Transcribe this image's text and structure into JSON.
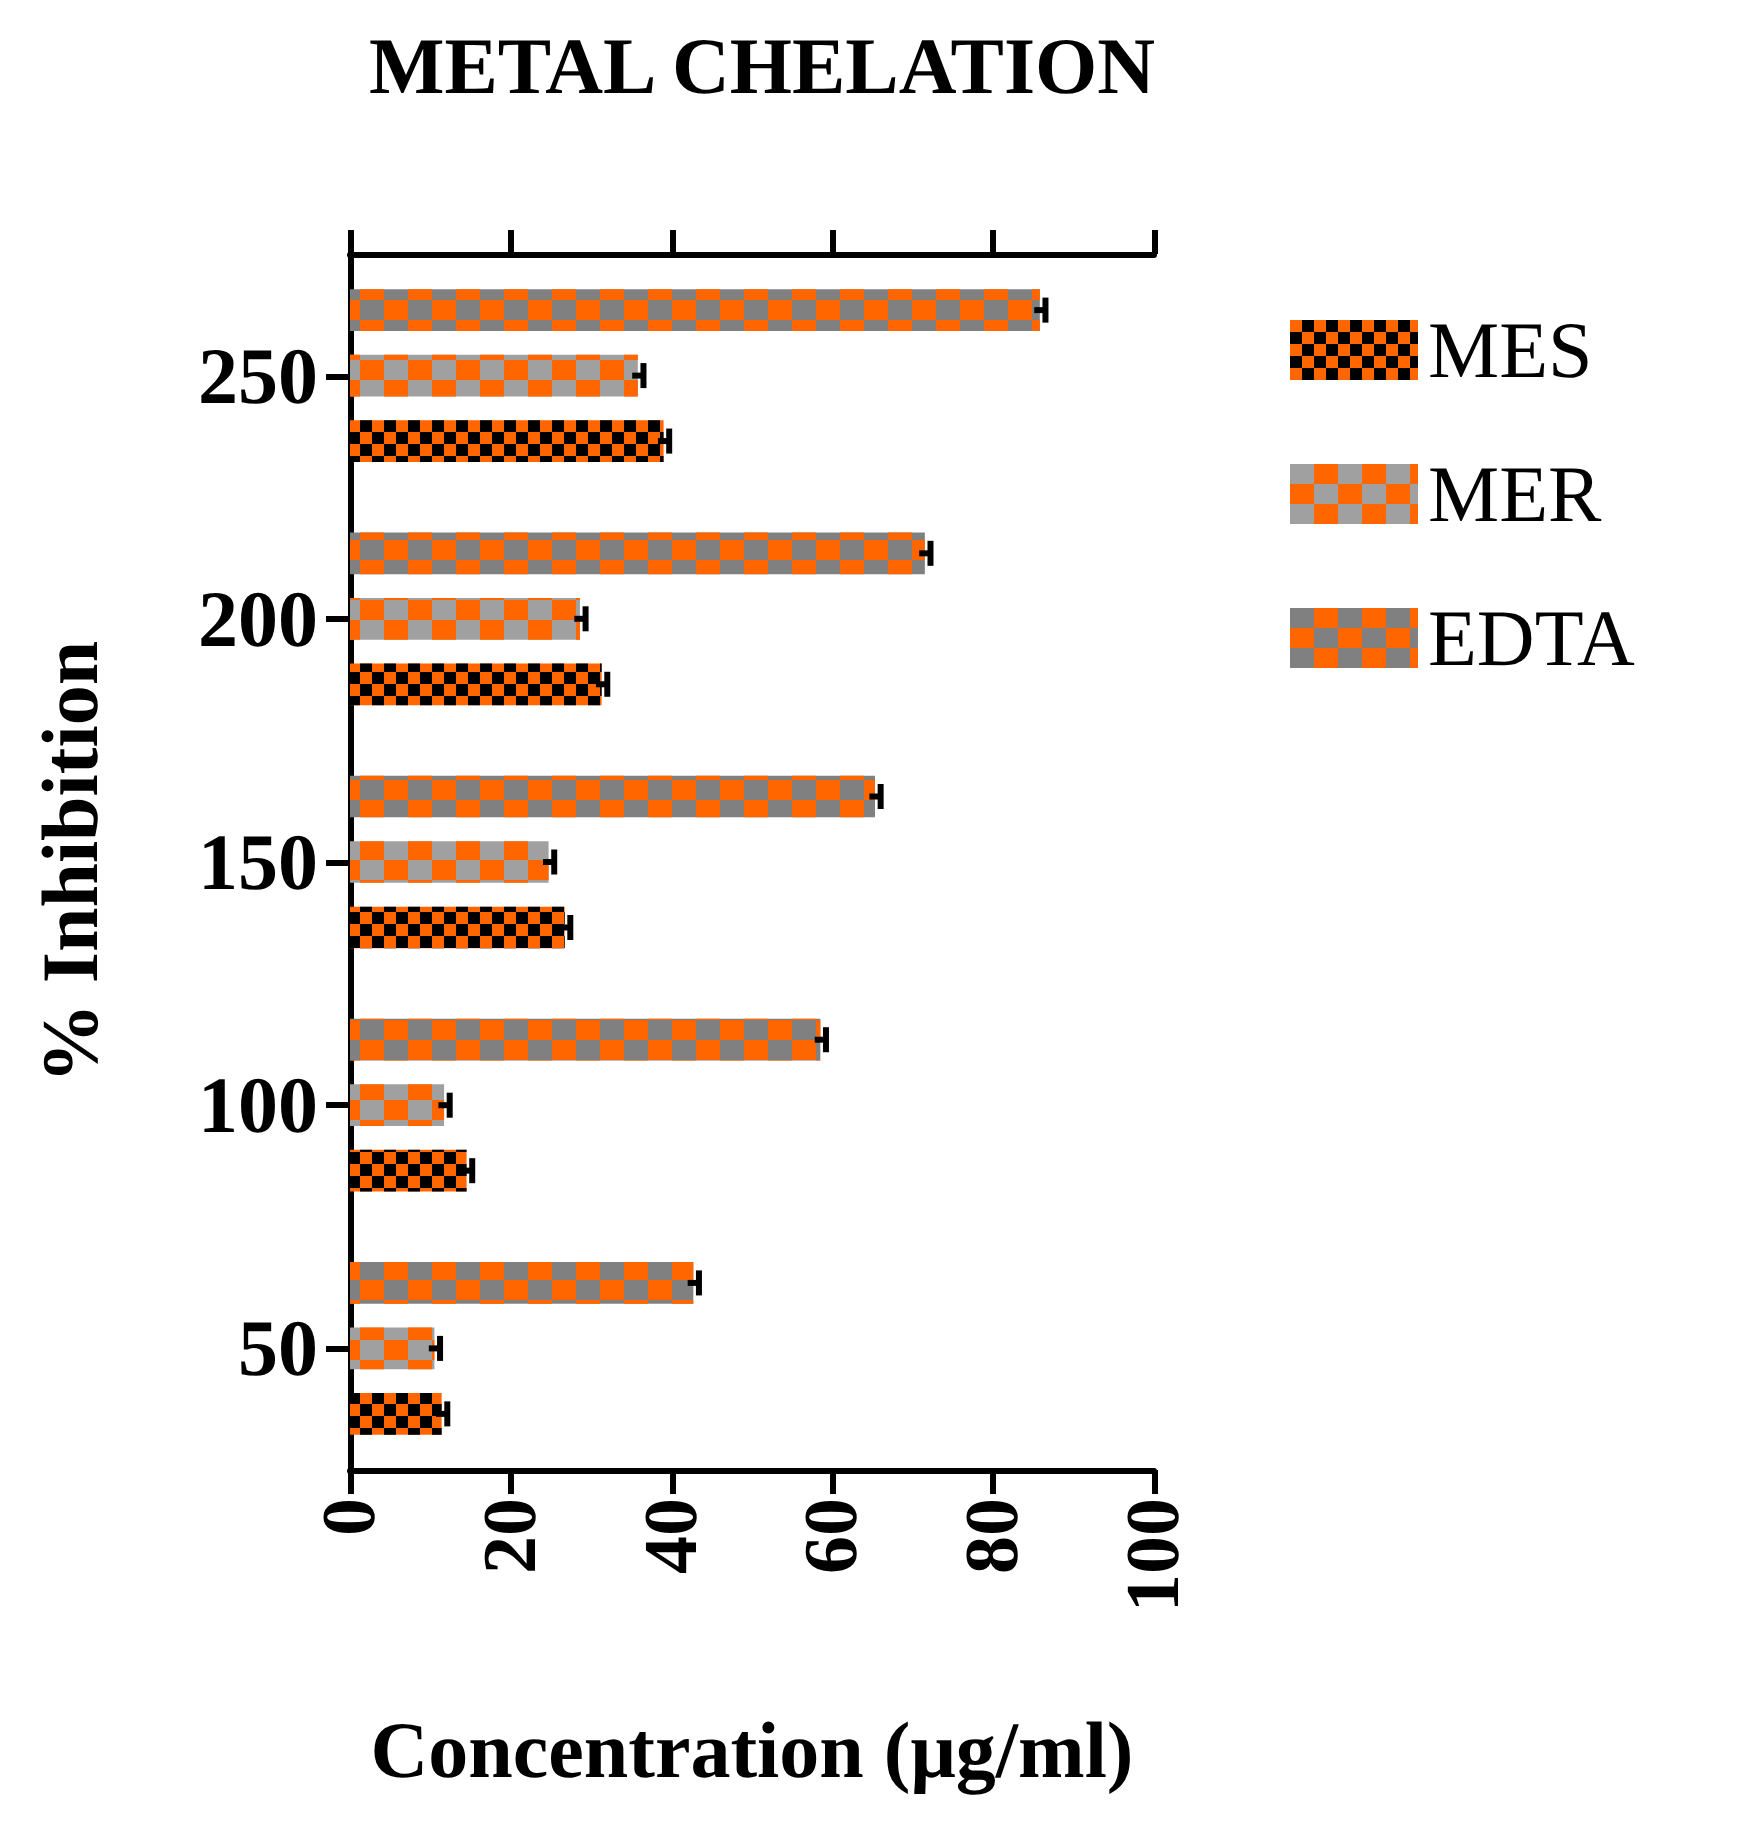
{
  "chart_data": {
    "type": "bar",
    "orientation": "horizontal",
    "title": "METAL CHELATION",
    "xlabel": "Concentration (μg/ml)",
    "ylabel": "% Inhibition",
    "categories": [
      "250",
      "200",
      "150",
      "100",
      "50"
    ],
    "series": [
      {
        "name": "MES",
        "color": "#ff6600",
        "values": [
          39.0,
          31.3,
          26.7,
          14.5,
          11.4
        ],
        "errors": [
          0.7,
          0.7,
          0.7,
          0.7,
          0.7
        ]
      },
      {
        "name": "MER",
        "color": "#a0a0a0",
        "values": [
          35.8,
          28.6,
          24.7,
          11.7,
          10.5
        ],
        "errors": [
          0.7,
          0.7,
          0.7,
          0.7,
          0.7
        ]
      },
      {
        "name": "EDTA",
        "color": "#808080",
        "values": [
          85.8,
          71.5,
          65.3,
          58.5,
          42.7
        ],
        "errors": [
          0.7,
          0.7,
          0.7,
          0.7,
          0.7
        ]
      }
    ],
    "xlim": [
      0,
      100
    ],
    "xticks": [
      0,
      20,
      40,
      60,
      80,
      100
    ],
    "grid": false,
    "legend": "right"
  }
}
